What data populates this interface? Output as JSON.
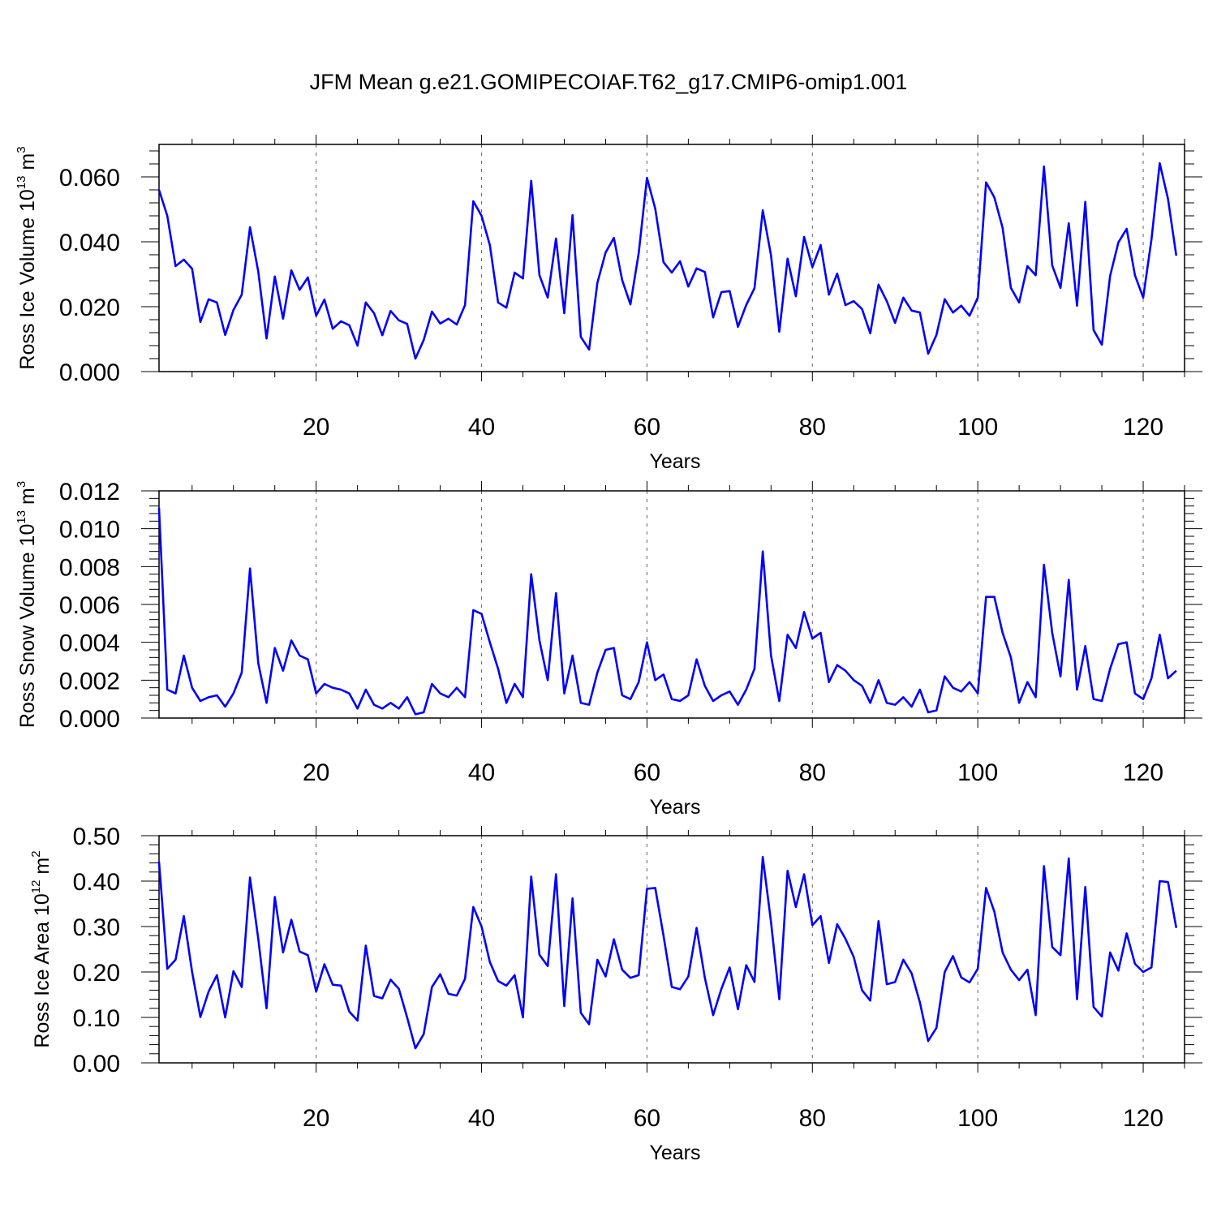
{
  "title": "JFM Mean g.e21.GOMIPECOIAF.T62_g17.CMIP6-omip1.001",
  "chart_data": [
    {
      "type": "line",
      "xlabel": "Years",
      "ylabel": "Ross Ice Volume 10",
      "ylabel_exp": "13",
      "ylabel_unit": " m",
      "ylabel_unit_exp": "3",
      "xlim": [
        1,
        125
      ],
      "ylim": [
        0.0,
        0.07
      ],
      "xticks": [
        20,
        40,
        60,
        80,
        100,
        120
      ],
      "xtick_labels": [
        "20",
        "40",
        "60",
        "80",
        "100",
        "120"
      ],
      "yticks": [
        0.0,
        0.02,
        0.04,
        0.06
      ],
      "ytick_labels": [
        "0.000",
        "0.020",
        "0.040",
        "0.060"
      ],
      "grid": "vertical dashed at major x ticks",
      "line_color": "#0000ff",
      "x_start": 1,
      "values": [
        0.056,
        0.048,
        0.0325,
        0.0345,
        0.0317,
        0.0153,
        0.0223,
        0.0213,
        0.0113,
        0.019,
        0.0237,
        0.0445,
        0.0308,
        0.0102,
        0.0293,
        0.0163,
        0.0312,
        0.0252,
        0.029,
        0.0172,
        0.0222,
        0.0132,
        0.0155,
        0.0143,
        0.008,
        0.0213,
        0.018,
        0.0112,
        0.0187,
        0.0158,
        0.0147,
        0.004,
        0.0097,
        0.0185,
        0.0148,
        0.0163,
        0.0145,
        0.0205,
        0.0525,
        0.048,
        0.039,
        0.0213,
        0.0197,
        0.0305,
        0.0287,
        0.0588,
        0.0297,
        0.0228,
        0.041,
        0.018,
        0.0482,
        0.0107,
        0.0068,
        0.0273,
        0.0367,
        0.0412,
        0.0282,
        0.0207,
        0.0365,
        0.0597,
        0.0502,
        0.0337,
        0.0305,
        0.034,
        0.0262,
        0.0318,
        0.0307,
        0.0167,
        0.0245,
        0.0248,
        0.0138,
        0.0205,
        0.0257,
        0.0497,
        0.0358,
        0.0123,
        0.0348,
        0.0232,
        0.0415,
        0.0322,
        0.039,
        0.0237,
        0.0302,
        0.0205,
        0.0217,
        0.0193,
        0.0118,
        0.0268,
        0.0217,
        0.015,
        0.0228,
        0.0188,
        0.0182,
        0.0055,
        0.0113,
        0.0223,
        0.0182,
        0.0203,
        0.0172,
        0.0228,
        0.0583,
        0.0537,
        0.0443,
        0.0258,
        0.0213,
        0.0325,
        0.0297,
        0.0632,
        0.0327,
        0.0258,
        0.0457,
        0.0203,
        0.0523,
        0.0128,
        0.0083,
        0.0295,
        0.0398,
        0.044,
        0.0297,
        0.0228,
        0.0407,
        0.0642,
        0.0532,
        0.0357
      ]
    },
    {
      "type": "line",
      "xlabel": "Years",
      "ylabel": "Ross Snow Volume 10",
      "ylabel_exp": "13",
      "ylabel_unit": " m",
      "ylabel_unit_exp": "3",
      "xlim": [
        1,
        125
      ],
      "ylim": [
        0.0,
        0.012
      ],
      "xticks": [
        20,
        40,
        60,
        80,
        100,
        120
      ],
      "xtick_labels": [
        "20",
        "40",
        "60",
        "80",
        "100",
        "120"
      ],
      "yticks": [
        0.0,
        0.002,
        0.004,
        0.006,
        0.008,
        0.01,
        0.012
      ],
      "ytick_labels": [
        "0.000",
        "0.002",
        "0.004",
        "0.006",
        "0.008",
        "0.010",
        "0.012"
      ],
      "grid": "vertical dashed at major x ticks",
      "line_color": "#0000ff",
      "x_start": 1,
      "values": [
        0.0111,
        0.0015,
        0.0013,
        0.0033,
        0.0016,
        0.0009,
        0.0011,
        0.0012,
        0.0006,
        0.0013,
        0.0024,
        0.0079,
        0.0029,
        0.0008,
        0.0037,
        0.0025,
        0.0041,
        0.0033,
        0.0031,
        0.0013,
        0.0018,
        0.0016,
        0.0015,
        0.0013,
        0.0005,
        0.0015,
        0.0007,
        0.0005,
        0.0008,
        0.0005,
        0.0011,
        0.0002,
        0.0003,
        0.0018,
        0.0013,
        0.0011,
        0.0016,
        0.0011,
        0.0057,
        0.0055,
        0.004,
        0.0026,
        0.0008,
        0.0018,
        0.0011,
        0.0076,
        0.0041,
        0.002,
        0.0066,
        0.0013,
        0.0033,
        0.0008,
        0.0007,
        0.0024,
        0.0036,
        0.0037,
        0.0012,
        0.001,
        0.0019,
        0.004,
        0.002,
        0.0023,
        0.001,
        0.0009,
        0.0012,
        0.0031,
        0.0017,
        0.0009,
        0.0012,
        0.0014,
        0.0007,
        0.0015,
        0.0026,
        0.0088,
        0.0033,
        0.0009,
        0.0044,
        0.0037,
        0.0056,
        0.0042,
        0.0045,
        0.0019,
        0.0028,
        0.0025,
        0.002,
        0.0017,
        0.0008,
        0.002,
        0.0008,
        0.0007,
        0.0011,
        0.0006,
        0.0015,
        0.0003,
        0.0004,
        0.0022,
        0.0016,
        0.0014,
        0.0019,
        0.0013,
        0.0064,
        0.0064,
        0.0045,
        0.0032,
        0.0008,
        0.0019,
        0.0011,
        0.0081,
        0.0045,
        0.0022,
        0.0073,
        0.0015,
        0.0038,
        0.001,
        0.0009,
        0.0026,
        0.0039,
        0.004,
        0.0013,
        0.001,
        0.0021,
        0.0044,
        0.0021,
        0.0025
      ]
    },
    {
      "type": "line",
      "xlabel": "Years",
      "ylabel": "Ross Ice Area 10",
      "ylabel_exp": "12",
      "ylabel_unit": " m",
      "ylabel_unit_exp": "2",
      "xlim": [
        1,
        125
      ],
      "ylim": [
        0.0,
        0.5
      ],
      "xticks": [
        20,
        40,
        60,
        80,
        100,
        120
      ],
      "xtick_labels": [
        "20",
        "40",
        "60",
        "80",
        "100",
        "120"
      ],
      "yticks": [
        0.0,
        0.1,
        0.2,
        0.3,
        0.4,
        0.5
      ],
      "ytick_labels": [
        "0.00",
        "0.10",
        "0.20",
        "0.30",
        "0.40",
        "0.50"
      ],
      "grid": "vertical dashed at major x ticks",
      "line_color": "#0000ff",
      "x_start": 1,
      "values": [
        0.443,
        0.207,
        0.227,
        0.323,
        0.2,
        0.101,
        0.157,
        0.193,
        0.1,
        0.202,
        0.167,
        0.408,
        0.273,
        0.12,
        0.365,
        0.243,
        0.315,
        0.245,
        0.237,
        0.157,
        0.217,
        0.172,
        0.17,
        0.113,
        0.093,
        0.258,
        0.147,
        0.142,
        0.183,
        0.163,
        0.1,
        0.032,
        0.063,
        0.167,
        0.195,
        0.152,
        0.148,
        0.185,
        0.343,
        0.3,
        0.222,
        0.18,
        0.17,
        0.193,
        0.1,
        0.41,
        0.238,
        0.213,
        0.415,
        0.125,
        0.362,
        0.11,
        0.085,
        0.227,
        0.19,
        0.272,
        0.205,
        0.187,
        0.193,
        0.383,
        0.385,
        0.28,
        0.167,
        0.162,
        0.19,
        0.297,
        0.187,
        0.105,
        0.163,
        0.21,
        0.118,
        0.215,
        0.178,
        0.453,
        0.31,
        0.14,
        0.423,
        0.343,
        0.415,
        0.303,
        0.323,
        0.22,
        0.305,
        0.273,
        0.233,
        0.16,
        0.137,
        0.312,
        0.173,
        0.178,
        0.227,
        0.197,
        0.133,
        0.048,
        0.077,
        0.2,
        0.235,
        0.188,
        0.177,
        0.207,
        0.385,
        0.333,
        0.243,
        0.205,
        0.182,
        0.205,
        0.105,
        0.433,
        0.255,
        0.237,
        0.45,
        0.14,
        0.387,
        0.123,
        0.102,
        0.243,
        0.203,
        0.285,
        0.218,
        0.2,
        0.21,
        0.4,
        0.398,
        0.297
      ]
    }
  ]
}
